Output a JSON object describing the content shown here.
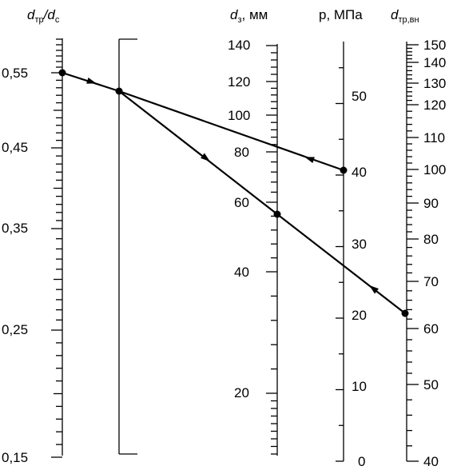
{
  "diagram": {
    "type": "nomogram",
    "scales": [
      {
        "id": "ratio",
        "title": "d",
        "title_sub": "тр",
        "title_mid": "/d",
        "title_sub2": "с",
        "labels": [
          "0,55",
          "0,45",
          "0,35",
          "0,25",
          "0,15"
        ],
        "values": [
          0.55,
          0.45,
          0.35,
          0.25,
          0.15
        ]
      },
      {
        "id": "pivot",
        "title": "",
        "labels": []
      },
      {
        "id": "d3",
        "title": "d",
        "title_sub": "з",
        "title_rest": ", мм",
        "labels": [
          "140",
          "120",
          "100",
          "80",
          "60",
          "40",
          "20"
        ],
        "values": [
          140,
          120,
          100,
          80,
          60,
          40,
          20
        ]
      },
      {
        "id": "pressure",
        "title": "p, МПа",
        "labels": [
          "50",
          "40",
          "30",
          "20",
          "10",
          "0"
        ],
        "values": [
          50,
          40,
          30,
          20,
          10,
          0
        ]
      },
      {
        "id": "dtr",
        "title": "d",
        "title_sub": "тр,вн",
        "labels": [
          "150",
          "140",
          "130",
          "120",
          "110",
          "100",
          "90",
          "80",
          "70",
          "60",
          "50",
          "40"
        ],
        "values": [
          150,
          140,
          130,
          120,
          110,
          100,
          90,
          80,
          70,
          60,
          50,
          40
        ]
      }
    ],
    "examples": [
      {
        "from": "ratio 0,55",
        "via": "pivot",
        "to": "d3 ≈ 56 мм"
      },
      {
        "from": "p = 40 МПа",
        "to": "pivot"
      },
      {
        "from": "d тр,вн ≈ 62",
        "to": "d3 ≈ 56 мм"
      }
    ]
  }
}
